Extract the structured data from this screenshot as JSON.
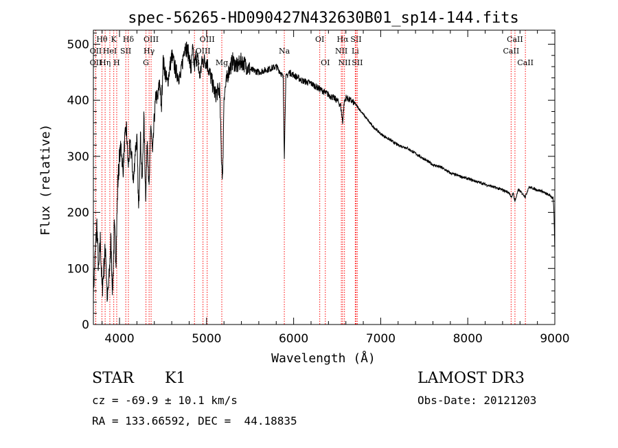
{
  "chart_data": {
    "type": "line",
    "title": "spec-56265-HD090427N432630B01_sp14-144.fits",
    "xlabel": "Wavelength (Å)",
    "ylabel": "Flux (relative)",
    "xlim": [
      3700,
      9000
    ],
    "ylim": [
      0,
      525
    ],
    "xticks": [
      4000,
      5000,
      6000,
      7000,
      8000,
      9000
    ],
    "yticks": [
      0,
      100,
      200,
      300,
      400,
      500
    ],
    "grid": false,
    "series": [
      {
        "name": "spectrum",
        "x": [
          3700,
          3720,
          3740,
          3760,
          3780,
          3800,
          3820,
          3840,
          3860,
          3880,
          3900,
          3920,
          3940,
          3960,
          3980,
          4000,
          4020,
          4040,
          4060,
          4080,
          4100,
          4120,
          4140,
          4160,
          4180,
          4200,
          4220,
          4240,
          4260,
          4280,
          4300,
          4320,
          4340,
          4360,
          4380,
          4400,
          4420,
          4440,
          4460,
          4480,
          4500,
          4550,
          4600,
          4650,
          4700,
          4750,
          4800,
          4820,
          4840,
          4861,
          4880,
          4900,
          4920,
          4950,
          5000,
          5050,
          5100,
          5150,
          5170,
          5185,
          5200,
          5250,
          5300,
          5350,
          5400,
          5500,
          5600,
          5700,
          5800,
          5850,
          5880,
          5893,
          5910,
          5950,
          6000,
          6100,
          6200,
          6300,
          6400,
          6500,
          6540,
          6563,
          6580,
          6600,
          6650,
          6700,
          6750,
          6800,
          6900,
          7000,
          7100,
          7200,
          7300,
          7400,
          7500,
          7600,
          7700,
          7800,
          7900,
          8000,
          8100,
          8200,
          8300,
          8400,
          8480,
          8498,
          8520,
          8542,
          8580,
          8600,
          8662,
          8700,
          8750,
          8800,
          8850,
          8900,
          8950,
          8980,
          8990,
          9000
        ],
        "y": [
          60,
          120,
          180,
          90,
          150,
          60,
          100,
          140,
          40,
          80,
          150,
          60,
          170,
          120,
          250,
          300,
          320,
          270,
          330,
          350,
          280,
          320,
          300,
          250,
          310,
          330,
          200,
          340,
          250,
          370,
          230,
          330,
          240,
          360,
          300,
          370,
          410,
          400,
          440,
          380,
          470,
          430,
          480,
          450,
          440,
          500,
          480,
          450,
          490,
          460,
          480,
          470,
          440,
          470,
          470,
          440,
          410,
          420,
          300,
          260,
          410,
          450,
          470,
          460,
          470,
          455,
          450,
          455,
          460,
          450,
          440,
          300,
          440,
          450,
          445,
          435,
          430,
          420,
          410,
          400,
          390,
          360,
          395,
          405,
          400,
          395,
          385,
          375,
          355,
          340,
          330,
          320,
          315,
          305,
          295,
          285,
          280,
          270,
          265,
          260,
          255,
          250,
          245,
          240,
          235,
          225,
          235,
          220,
          240,
          238,
          228,
          245,
          243,
          240,
          238,
          233,
          230,
          225,
          200,
          130
        ]
      }
    ],
    "line_markers": [
      {
        "label": "Hθ",
        "x": 3798,
        "row": 1
      },
      {
        "label": "OII",
        "x": 3727,
        "row": 2
      },
      {
        "label": "OII",
        "x": 3727,
        "row": 3
      },
      {
        "label": "K",
        "x": 3934,
        "row": 1
      },
      {
        "label": "HeI",
        "x": 3889,
        "row": 2
      },
      {
        "label": "Hη",
        "x": 3835,
        "row": 3
      },
      {
        "label": "Hδ",
        "x": 4102,
        "row": 1
      },
      {
        "label": "SII",
        "x": 4072,
        "row": 2
      },
      {
        "label": "H",
        "x": 3968,
        "row": 3
      },
      {
        "label": "OIII",
        "x": 4363,
        "row": 1
      },
      {
        "label": "Hγ",
        "x": 4340,
        "row": 2
      },
      {
        "label": "G",
        "x": 4304,
        "row": 3
      },
      {
        "label": "OIII",
        "x": 5007,
        "row": 1
      },
      {
        "label": "OIII",
        "x": 4959,
        "row": 2
      },
      {
        "label": "Hβ",
        "x": 4861,
        "row": 3
      },
      {
        "label": "Mg",
        "x": 5175,
        "row": 3
      },
      {
        "label": "Na",
        "x": 5893,
        "row": 2
      },
      {
        "label": "OI",
        "x": 6300,
        "row": 1
      },
      {
        "label": "OI",
        "x": 6364,
        "row": 3
      },
      {
        "label": "Hα",
        "x": 6563,
        "row": 1
      },
      {
        "label": "NII",
        "x": 6548,
        "row": 2
      },
      {
        "label": "NII",
        "x": 6584,
        "row": 3
      },
      {
        "label": "SII",
        "x": 6717,
        "row": 1
      },
      {
        "label": "Li",
        "x": 6708,
        "row": 2
      },
      {
        "label": "SII",
        "x": 6731,
        "row": 3
      },
      {
        "label": "CaII",
        "x": 8542,
        "row": 1
      },
      {
        "label": "CaII",
        "x": 8498,
        "row": 2
      },
      {
        "label": "CaII",
        "x": 8662,
        "row": 3
      }
    ]
  },
  "info": {
    "object_class": "STAR",
    "subclass": "K1",
    "survey": "LAMOST DR3",
    "cz_text": "cz = -69.9 ± 10.1 km/s",
    "obs_date": "Obs-Date: 20121203",
    "coords_text": "RA = 133.66592, DEC =  44.18835"
  },
  "colors": {
    "spectrum": "#000000",
    "marker_line": "#ff0000",
    "axes": "#000000"
  }
}
